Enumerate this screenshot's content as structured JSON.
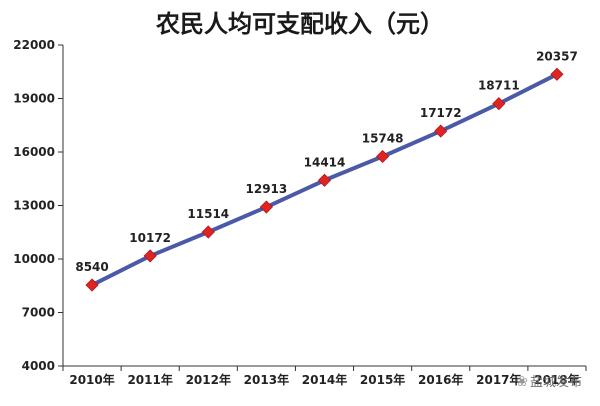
{
  "chart_data": {
    "type": "line",
    "title": "农民人均可支配收入（元）",
    "categories": [
      "2010年",
      "2011年",
      "2012年",
      "2013年",
      "2014年",
      "2015年",
      "2016年",
      "2017年",
      "2018年"
    ],
    "series": [
      {
        "values": [
          8540,
          10172,
          11514,
          12913,
          14414,
          15748,
          17172,
          18711,
          20357
        ]
      }
    ],
    "yticks": [
      4000,
      7000,
      10000,
      13000,
      16000,
      19000,
      22000
    ],
    "ylim": [
      4000,
      22000
    ],
    "grid": false,
    "line_color": "#4b5aa6",
    "marker_color": "#e02424",
    "legend": "none"
  },
  "watermark": {
    "text": "盐城发布",
    "icon": "wechat-icon"
  }
}
